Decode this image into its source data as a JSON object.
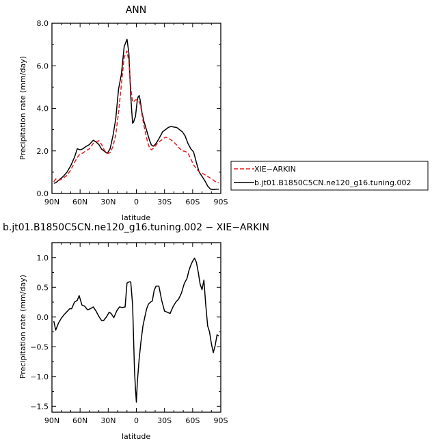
{
  "chart_data": [
    {
      "type": "line",
      "title": "ANN",
      "xlabel": "latitude",
      "ylabel": "Precipitation rate  (mm/day)",
      "xlim": [
        90,
        -90
      ],
      "ylim": [
        0,
        8
      ],
      "x_ticks": [
        90,
        60,
        30,
        0,
        -30,
        -60,
        -90
      ],
      "x_tick_labels": [
        "90N",
        "60N",
        "30N",
        "0",
        "30S",
        "60S",
        "90S"
      ],
      "y_ticks": [
        0,
        2,
        4,
        6,
        8
      ],
      "y_tick_labels": [
        "0.0",
        "2.0",
        "4.0",
        "6.0",
        "8.0"
      ],
      "legend_position": "right",
      "legend_order": [
        1,
        0
      ],
      "series": [
        {
          "name": "b.jt01.B1850C5CN.ne120_g16.tuning.002",
          "color": "#000000",
          "dash": "solid",
          "x": [
            88,
            86,
            82,
            78,
            74,
            70,
            66,
            63,
            60,
            57,
            54,
            50,
            46,
            43,
            40,
            37,
            34,
            31,
            28,
            25,
            22,
            19,
            16,
            13,
            10,
            8,
            7,
            6,
            5,
            4,
            3,
            2,
            1,
            0,
            -1,
            -2,
            -3,
            -4,
            -5,
            -6,
            -8,
            -10,
            -12,
            -14,
            -16,
            -18,
            -20,
            -22,
            -25,
            -28,
            -31,
            -34,
            -37,
            -40,
            -43,
            -46,
            -49,
            -52,
            -55,
            -58,
            -61,
            -64,
            -67,
            -70,
            -73,
            -76,
            -79,
            -82,
            -85,
            -88
          ],
          "y": [
            0.48,
            0.5,
            0.65,
            0.8,
            1.0,
            1.3,
            1.7,
            2.1,
            2.05,
            2.1,
            2.2,
            2.3,
            2.5,
            2.42,
            2.3,
            2.08,
            1.98,
            1.88,
            2.1,
            2.7,
            3.5,
            4.9,
            5.6,
            6.9,
            7.25,
            6.6,
            5.6,
            4.6,
            3.9,
            3.3,
            3.35,
            3.5,
            3.6,
            4.0,
            4.4,
            4.55,
            4.6,
            4.4,
            4.1,
            3.8,
            3.4,
            3.1,
            2.8,
            2.5,
            2.28,
            2.22,
            2.3,
            2.42,
            2.65,
            2.9,
            3.0,
            3.1,
            3.15,
            3.12,
            3.1,
            3.0,
            2.9,
            2.7,
            2.35,
            2.1,
            1.95,
            1.45,
            1.0,
            0.8,
            0.6,
            0.35,
            0.2,
            0.18,
            0.2,
            0.2
          ]
        },
        {
          "name": "XIE−ARKIN",
          "color": "#e8191d",
          "dash": "dashed",
          "x": [
            88,
            86,
            82,
            78,
            74,
            70,
            66,
            63,
            60,
            57,
            54,
            50,
            46,
            43,
            40,
            37,
            34,
            31,
            28,
            25,
            22,
            19,
            16,
            13,
            10,
            8,
            7,
            6,
            5,
            4,
            3,
            2,
            1,
            0,
            -1,
            -2,
            -3,
            -4,
            -5,
            -6,
            -8,
            -10,
            -12,
            -14,
            -16,
            -18,
            -20,
            -22,
            -25,
            -28,
            -31,
            -34,
            -37,
            -40,
            -43,
            -46,
            -49,
            -52,
            -55,
            -58,
            -61,
            -64,
            -67,
            -70,
            -73,
            -76,
            -79,
            -82,
            -85,
            -88
          ],
          "y": [
            0.55,
            0.68,
            0.62,
            0.72,
            0.85,
            1.1,
            1.45,
            1.7,
            1.85,
            1.9,
            2.0,
            2.1,
            2.35,
            2.42,
            2.48,
            2.3,
            2.02,
            1.88,
            1.92,
            2.2,
            2.75,
            3.8,
            5.1,
            6.4,
            6.7,
            6.2,
            5.6,
            5.0,
            4.6,
            4.3,
            4.3,
            4.35,
            4.4,
            4.4,
            4.38,
            4.35,
            4.3,
            4.2,
            4.0,
            3.7,
            3.2,
            2.8,
            2.4,
            2.15,
            2.05,
            2.12,
            2.22,
            2.32,
            2.45,
            2.55,
            2.65,
            2.6,
            2.52,
            2.4,
            2.28,
            2.12,
            2.0,
            1.98,
            1.9,
            1.62,
            1.35,
            1.15,
            1.02,
            0.95,
            0.88,
            0.8,
            0.72,
            0.63,
            0.53,
            0.5
          ]
        }
      ]
    },
    {
      "type": "line",
      "title": "b.jt01.B1850C5CN.ne120_g16.tuning.002  −  XIE−ARKIN",
      "xlabel": "latitude",
      "ylabel": "Precipitation rate  (mm/day)",
      "xlim": [
        90,
        -90
      ],
      "ylim": [
        -1.6,
        1.25
      ],
      "x_ticks": [
        90,
        60,
        30,
        0,
        -30,
        -60,
        -90
      ],
      "x_tick_labels": [
        "90N",
        "60N",
        "30N",
        "0",
        "30S",
        "60S",
        "90S"
      ],
      "y_ticks": [
        -1.5,
        -1.0,
        -0.5,
        0.0,
        0.5,
        1.0
      ],
      "y_tick_labels": [
        "−1.5",
        "−1.0",
        "−0.5",
        "0.0",
        "0.5",
        "1.0"
      ],
      "series": [
        {
          "color": "#000000",
          "dash": "solid",
          "x": [
            88,
            86,
            83,
            80,
            77,
            74,
            71,
            69,
            66,
            63,
            61,
            58,
            55,
            52,
            49,
            46,
            43,
            40,
            37,
            35,
            32,
            29,
            27,
            24,
            21,
            18,
            15,
            12,
            10,
            8,
            6,
            4,
            2,
            1,
            0,
            -1,
            -3,
            -5,
            -7,
            -9,
            -11,
            -13,
            -15,
            -17,
            -19,
            -21,
            -24,
            -27,
            -30,
            -33,
            -36,
            -39,
            -42,
            -45,
            -48,
            -51,
            -54,
            -56,
            -58,
            -60,
            -62,
            -64,
            -66,
            -68,
            -70,
            -72,
            -74,
            -76,
            -78,
            -80,
            -82,
            -84,
            -86,
            -88
          ],
          "y": [
            -0.07,
            -0.22,
            -0.1,
            -0.02,
            0.04,
            0.09,
            0.14,
            0.14,
            0.25,
            0.28,
            0.36,
            0.2,
            0.18,
            0.12,
            0.14,
            0.17,
            0.1,
            0.01,
            -0.06,
            -0.06,
            0.0,
            0.08,
            0.06,
            -0.01,
            0.1,
            0.17,
            0.16,
            0.17,
            0.57,
            0.59,
            0.59,
            0.2,
            -0.9,
            -1.2,
            -1.43,
            -1.1,
            -0.7,
            -0.4,
            -0.15,
            0.0,
            0.14,
            0.22,
            0.25,
            0.27,
            0.45,
            0.52,
            0.52,
            0.28,
            0.1,
            0.08,
            0.06,
            0.17,
            0.25,
            0.3,
            0.4,
            0.56,
            0.65,
            0.78,
            0.87,
            0.94,
            0.99,
            0.92,
            0.75,
            0.55,
            0.46,
            0.62,
            0.2,
            -0.15,
            -0.25,
            -0.45,
            -0.6,
            -0.48,
            -0.3,
            -0.32
          ]
        }
      ]
    }
  ]
}
